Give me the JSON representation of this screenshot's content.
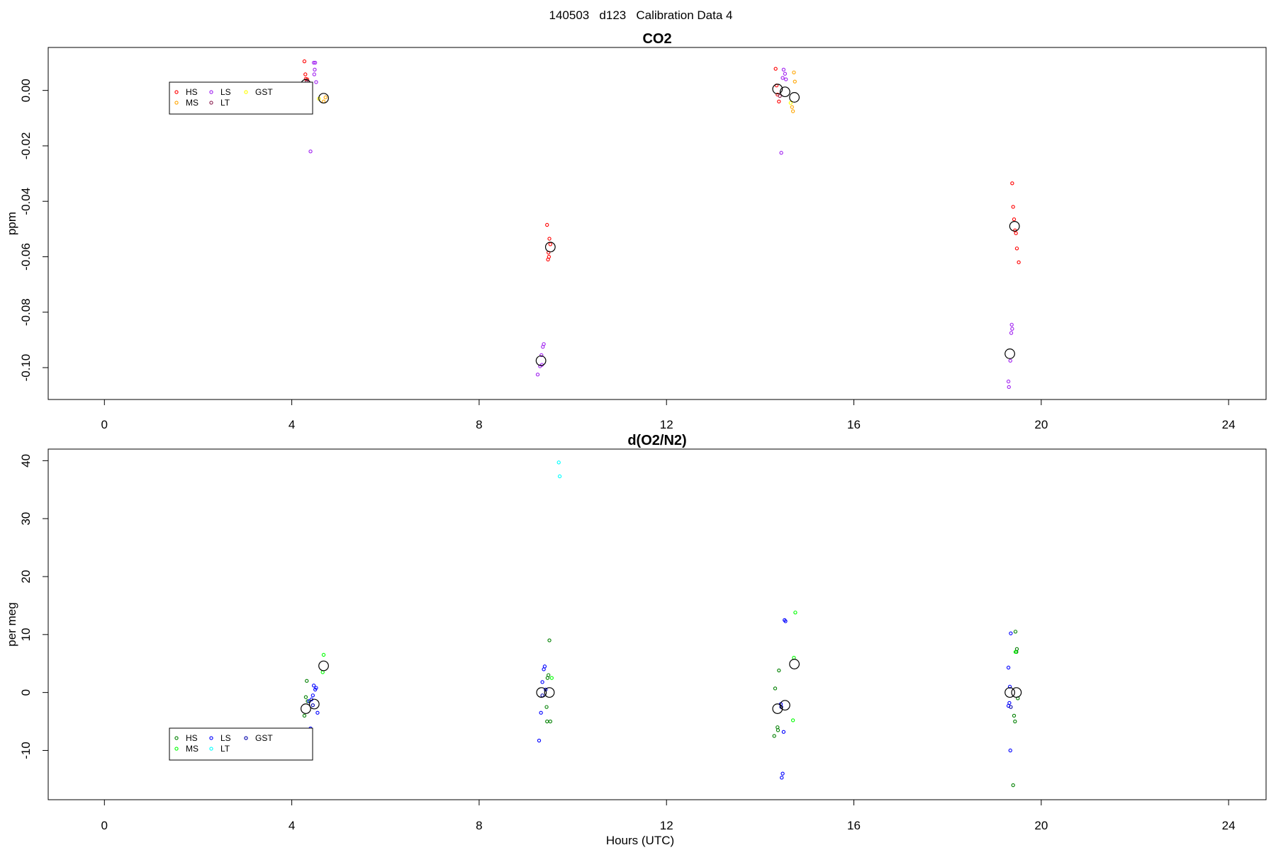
{
  "figure": {
    "title": "140503   d123   Calibration Data 4",
    "xlabel": "Hours (UTC)"
  },
  "chart_data": [
    {
      "type": "scatter",
      "title": "CO2",
      "xlabel": "",
      "ylabel": "ppm",
      "xlim": [
        -1.2,
        24.8
      ],
      "ylim": [
        -0.1115,
        0.0155
      ],
      "x_ticks": [
        0,
        4,
        8,
        12,
        16,
        20,
        24
      ],
      "y_ticks": [
        -0.1,
        -0.08,
        -0.06,
        -0.04,
        -0.02,
        0.0
      ],
      "y_tick_labels": [
        "-0.10",
        "-0.08",
        "-0.06",
        "-0.04",
        "-0.02",
        "0.00"
      ],
      "legend_position": "top-left",
      "series": [
        {
          "name": "HS",
          "color": "#ff0000",
          "points": [
            [
              4.27,
              0.0105
            ],
            [
              4.29,
              0.0058
            ],
            [
              4.3,
              0.0042
            ],
            [
              4.31,
              0.0015
            ],
            [
              4.33,
              0.004
            ],
            [
              9.45,
              -0.0485
            ],
            [
              9.5,
              -0.0535
            ],
            [
              9.52,
              -0.0555
            ],
            [
              9.48,
              -0.0585
            ],
            [
              9.47,
              -0.061
            ],
            [
              9.49,
              -0.06
            ],
            [
              14.33,
              0.0078
            ],
            [
              14.35,
              0.0018
            ],
            [
              14.37,
              -0.0015
            ],
            [
              14.4,
              -0.004
            ],
            [
              19.38,
              -0.0335
            ],
            [
              19.4,
              -0.042
            ],
            [
              19.42,
              -0.0465
            ],
            [
              19.44,
              -0.0505
            ],
            [
              19.46,
              -0.0515
            ],
            [
              19.48,
              -0.057
            ],
            [
              19.52,
              -0.062
            ]
          ]
        },
        {
          "name": "MS",
          "color": "#ffa500",
          "points": [
            [
              4.68,
              -0.004
            ],
            [
              4.72,
              -0.0025
            ],
            [
              14.68,
              -0.006
            ],
            [
              14.7,
              -0.0075
            ],
            [
              14.72,
              0.0065
            ],
            [
              14.74,
              0.0032
            ]
          ]
        },
        {
          "name": "LS",
          "color": "#a020f0",
          "points": [
            [
              4.4,
              -0.022
            ],
            [
              4.47,
              0.01
            ],
            [
              4.49,
              0.0075
            ],
            [
              4.5,
              0.01
            ],
            [
              4.48,
              0.0058
            ],
            [
              4.52,
              0.003
            ],
            [
              9.25,
              -0.1025
            ],
            [
              9.3,
              -0.0995
            ],
            [
              9.33,
              -0.0955
            ],
            [
              9.38,
              -0.0915
            ],
            [
              9.36,
              -0.0925
            ],
            [
              9.34,
              -0.099
            ],
            [
              14.45,
              -0.0225
            ],
            [
              14.5,
              0.0075
            ],
            [
              14.53,
              0.006
            ],
            [
              14.55,
              0.004
            ],
            [
              14.48,
              0.0045
            ],
            [
              19.3,
              -0.105
            ],
            [
              19.31,
              -0.107
            ],
            [
              19.34,
              -0.0975
            ],
            [
              19.36,
              -0.0875
            ],
            [
              19.37,
              -0.0845
            ],
            [
              19.38,
              -0.086
            ]
          ]
        },
        {
          "name": "LT",
          "color": "#8b2252",
          "points": [
            [
              4.32,
              0.003
            ],
            [
              14.42,
              -0.002
            ]
          ]
        },
        {
          "name": "GST",
          "color": "#ffff00",
          "points": [
            [
              4.58,
              -0.003
            ],
            [
              14.65,
              -0.0045
            ]
          ]
        }
      ],
      "means": [
        [
          4.3,
          0.0022
        ],
        [
          4.68,
          -0.0028
        ],
        [
          9.32,
          -0.0975
        ],
        [
          9.52,
          -0.0565
        ],
        [
          14.37,
          0.0005
        ],
        [
          14.53,
          -0.0005
        ],
        [
          14.73,
          -0.0025
        ],
        [
          19.33,
          -0.095
        ],
        [
          19.43,
          -0.049
        ]
      ]
    },
    {
      "type": "scatter",
      "title": "d(O2/N2)",
      "xlabel": "Hours (UTC)",
      "ylabel": "per meg",
      "xlim": [
        -1.2,
        24.8
      ],
      "ylim": [
        -18.5,
        42.0
      ],
      "x_ticks": [
        0,
        4,
        8,
        12,
        16,
        20,
        24
      ],
      "y_ticks": [
        -10,
        0,
        10,
        20,
        30,
        40
      ],
      "y_tick_labels": [
        "-10",
        "0",
        "10",
        "20",
        "30",
        "40"
      ],
      "legend_position": "bottom-left",
      "series": [
        {
          "name": "HS",
          "color": "#008000",
          "points": [
            [
              4.27,
              -4.0
            ],
            [
              4.3,
              -0.8
            ],
            [
              4.32,
              2.0
            ],
            [
              4.34,
              -1.5
            ],
            [
              9.5,
              9.0
            ],
            [
              9.48,
              3.0
            ],
            [
              9.46,
              2.5
            ],
            [
              9.44,
              -2.5
            ],
            [
              9.45,
              -5.0
            ],
            [
              9.52,
              -5.0
            ],
            [
              14.32,
              0.7
            ],
            [
              14.4,
              3.8
            ],
            [
              14.37,
              -6.0
            ],
            [
              14.38,
              -6.5
            ],
            [
              14.3,
              -7.5
            ],
            [
              19.45,
              10.5
            ],
            [
              19.48,
              7.5
            ],
            [
              19.47,
              7.0
            ],
            [
              19.42,
              -4.0
            ],
            [
              19.44,
              -5.0
            ],
            [
              19.4,
              -16.0
            ],
            [
              19.5,
              -1.0
            ]
          ]
        },
        {
          "name": "MS",
          "color": "#00ff00",
          "points": [
            [
              4.68,
              6.5
            ],
            [
              4.66,
              3.5
            ],
            [
              9.55,
              2.5
            ],
            [
              14.75,
              13.8
            ],
            [
              14.72,
              6.0
            ],
            [
              14.7,
              -4.8
            ],
            [
              19.45,
              7.0
            ]
          ]
        },
        {
          "name": "LS",
          "color": "#0000ff",
          "points": [
            [
              4.37,
              -1.5
            ],
            [
              4.42,
              -1.2
            ],
            [
              4.45,
              -0.5
            ],
            [
              4.47,
              1.2
            ],
            [
              4.5,
              0.5
            ],
            [
              4.52,
              0.8
            ],
            [
              4.55,
              -3.5
            ],
            [
              4.4,
              -6.2
            ],
            [
              9.28,
              -8.3
            ],
            [
              9.32,
              -3.5
            ],
            [
              9.35,
              1.8
            ],
            [
              9.38,
              4.0
            ],
            [
              9.4,
              4.5
            ],
            [
              9.42,
              0.5
            ],
            [
              14.48,
              -14.0
            ],
            [
              14.46,
              -14.7
            ],
            [
              14.54,
              12.3
            ],
            [
              14.52,
              12.5
            ],
            [
              14.5,
              -6.8
            ],
            [
              14.44,
              -2.0
            ],
            [
              19.3,
              4.3
            ],
            [
              19.35,
              10.2
            ],
            [
              19.33,
              1.0
            ],
            [
              19.32,
              -1.8
            ],
            [
              19.3,
              -2.3
            ],
            [
              19.34,
              -10.0
            ]
          ]
        },
        {
          "name": "LT",
          "color": "#00ffff",
          "points": [
            [
              9.7,
              39.7
            ],
            [
              9.72,
              37.3
            ]
          ]
        },
        {
          "name": "GST",
          "color": "#0000aa",
          "points": [
            [
              4.45,
              -2.2
            ],
            [
              9.35,
              -0.5
            ],
            [
              14.45,
              -2.5
            ],
            [
              19.35,
              -2.5
            ]
          ]
        }
      ],
      "means": [
        [
          4.3,
          -2.8
        ],
        [
          4.48,
          -2.0
        ],
        [
          4.68,
          4.6
        ],
        [
          9.33,
          0.0
        ],
        [
          9.5,
          0.0
        ],
        [
          14.37,
          -2.8
        ],
        [
          14.53,
          -2.2
        ],
        [
          14.73,
          4.9
        ],
        [
          19.33,
          0.0
        ],
        [
          19.47,
          0.0
        ]
      ]
    }
  ]
}
